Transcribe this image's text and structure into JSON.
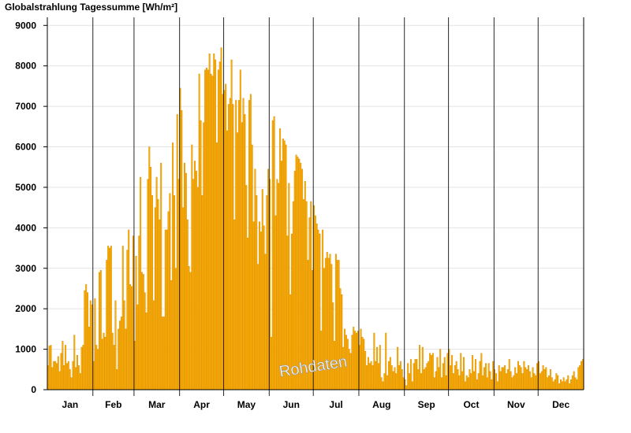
{
  "chart_data": {
    "type": "bar",
    "title": "Globalstrahlung Tagessumme [Wh/m²]",
    "ylim": [
      0,
      9200
    ],
    "yticks": [
      0,
      1000,
      2000,
      3000,
      4000,
      5000,
      6000,
      7000,
      8000,
      9000
    ],
    "grid": true,
    "months": [
      "Jan",
      "Feb",
      "Mar",
      "Apr",
      "May",
      "Jun",
      "Jul",
      "Aug",
      "Sep",
      "Oct",
      "Nov",
      "Dec"
    ],
    "month_days": [
      31,
      28,
      31,
      30,
      31,
      30,
      31,
      31,
      30,
      31,
      30,
      31
    ],
    "annotation": "Rohdaten",
    "colors": {
      "bar_fill": "#FFB000",
      "bar_stroke": "#D68A00",
      "grid": "#E3E3E3",
      "axis": "#000000"
    },
    "values": [
      600,
      1080,
      1100,
      550,
      700,
      700,
      650,
      820,
      450,
      900,
      1200,
      600,
      1100,
      650,
      700,
      500,
      300,
      700,
      1350,
      550,
      850,
      600,
      400,
      1050,
      1100,
      2450,
      2600,
      2400,
      1550,
      2200,
      2100,
      700,
      2250,
      1100,
      1000,
      2900,
      2950,
      1250,
      1400,
      1300,
      3200,
      3550,
      3500,
      3550,
      1400,
      1100,
      2200,
      500,
      1500,
      1700,
      1800,
      3550,
      2200,
      1500,
      3450,
      3950,
      2600,
      2550,
      3800,
      1200,
      3300,
      2100,
      3800,
      5250,
      2900,
      2850,
      2400,
      1900,
      5200,
      6000,
      5500,
      4800,
      2200,
      4500,
      5250,
      4700,
      4200,
      5600,
      1800,
      1800,
      3950,
      3950,
      4400,
      4850,
      2700,
      6100,
      4800,
      3000,
      6800,
      5200,
      7450,
      6900,
      4500,
      5600,
      5350,
      4200,
      3050,
      2900,
      6050,
      5200,
      5650,
      5400,
      5000,
      7800,
      6650,
      4800,
      6600,
      7900,
      7950,
      7900,
      8300,
      7800,
      7750,
      8300,
      8150,
      6100,
      7900,
      8100,
      8450,
      7300,
      7400,
      7550,
      6400,
      7050,
      7200,
      8150,
      7050,
      4200,
      7150,
      6350,
      7150,
      7900,
      6600,
      7200,
      6800,
      5050,
      3750,
      7150,
      7300,
      6050,
      4150,
      5450,
      4800,
      3100,
      4150,
      3900,
      4950,
      4050,
      3350,
      4800,
      5450,
      5200,
      1300,
      6650,
      6750,
      4300,
      5200,
      5100,
      6450,
      5650,
      6200,
      6150,
      6050,
      3800,
      5100,
      2350,
      3850,
      4650,
      5400,
      5800,
      5750,
      5700,
      5600,
      5450,
      4700,
      5150,
      4650,
      3200,
      4250,
      4650,
      2950,
      4550,
      4300,
      4100,
      3950,
      3850,
      1450,
      3950,
      3000,
      3250,
      3400,
      3250,
      3350,
      3100,
      2150,
      1200,
      3350,
      3200,
      3200,
      2500,
      2350,
      1050,
      1500,
      1350,
      1250,
      1000,
      900,
      1350,
      1550,
      1450,
      1400,
      1450,
      1100,
      1500,
      1300,
      1250,
      950,
      600,
      800,
      650,
      700,
      600,
      1400,
      700,
      1050,
      650,
      1100,
      300,
      200,
      400,
      1400,
      350,
      700,
      800,
      600,
      450,
      550,
      400,
      1050,
      600,
      700,
      500,
      300,
      250,
      100,
      650,
      400,
      750,
      200,
      650,
      750,
      750,
      500,
      1100,
      400,
      1050,
      500,
      550,
      650,
      700,
      900,
      850,
      900,
      300,
      450,
      800,
      550,
      1000,
      300,
      650,
      800,
      350,
      900,
      1000,
      600,
      850,
      400,
      600,
      700,
      500,
      350,
      900,
      450,
      800,
      200,
      350,
      300,
      500,
      400,
      850,
      450,
      750,
      250,
      400,
      700,
      900,
      350,
      550,
      650,
      300,
      650,
      450,
      250,
      700,
      500,
      400,
      200,
      600,
      450,
      550,
      550,
      600,
      400,
      500,
      750,
      450,
      300,
      350,
      550,
      400,
      700,
      600,
      550,
      400,
      700,
      550,
      500,
      600,
      450,
      300,
      550,
      400,
      350,
      650,
      700,
      400,
      450,
      600,
      500,
      550,
      300,
      350,
      500,
      300,
      200,
      250,
      400,
      350,
      150,
      250,
      200,
      300,
      200,
      250,
      350,
      150,
      250,
      350,
      450,
      300,
      250,
      550,
      600,
      700,
      750
    ]
  }
}
